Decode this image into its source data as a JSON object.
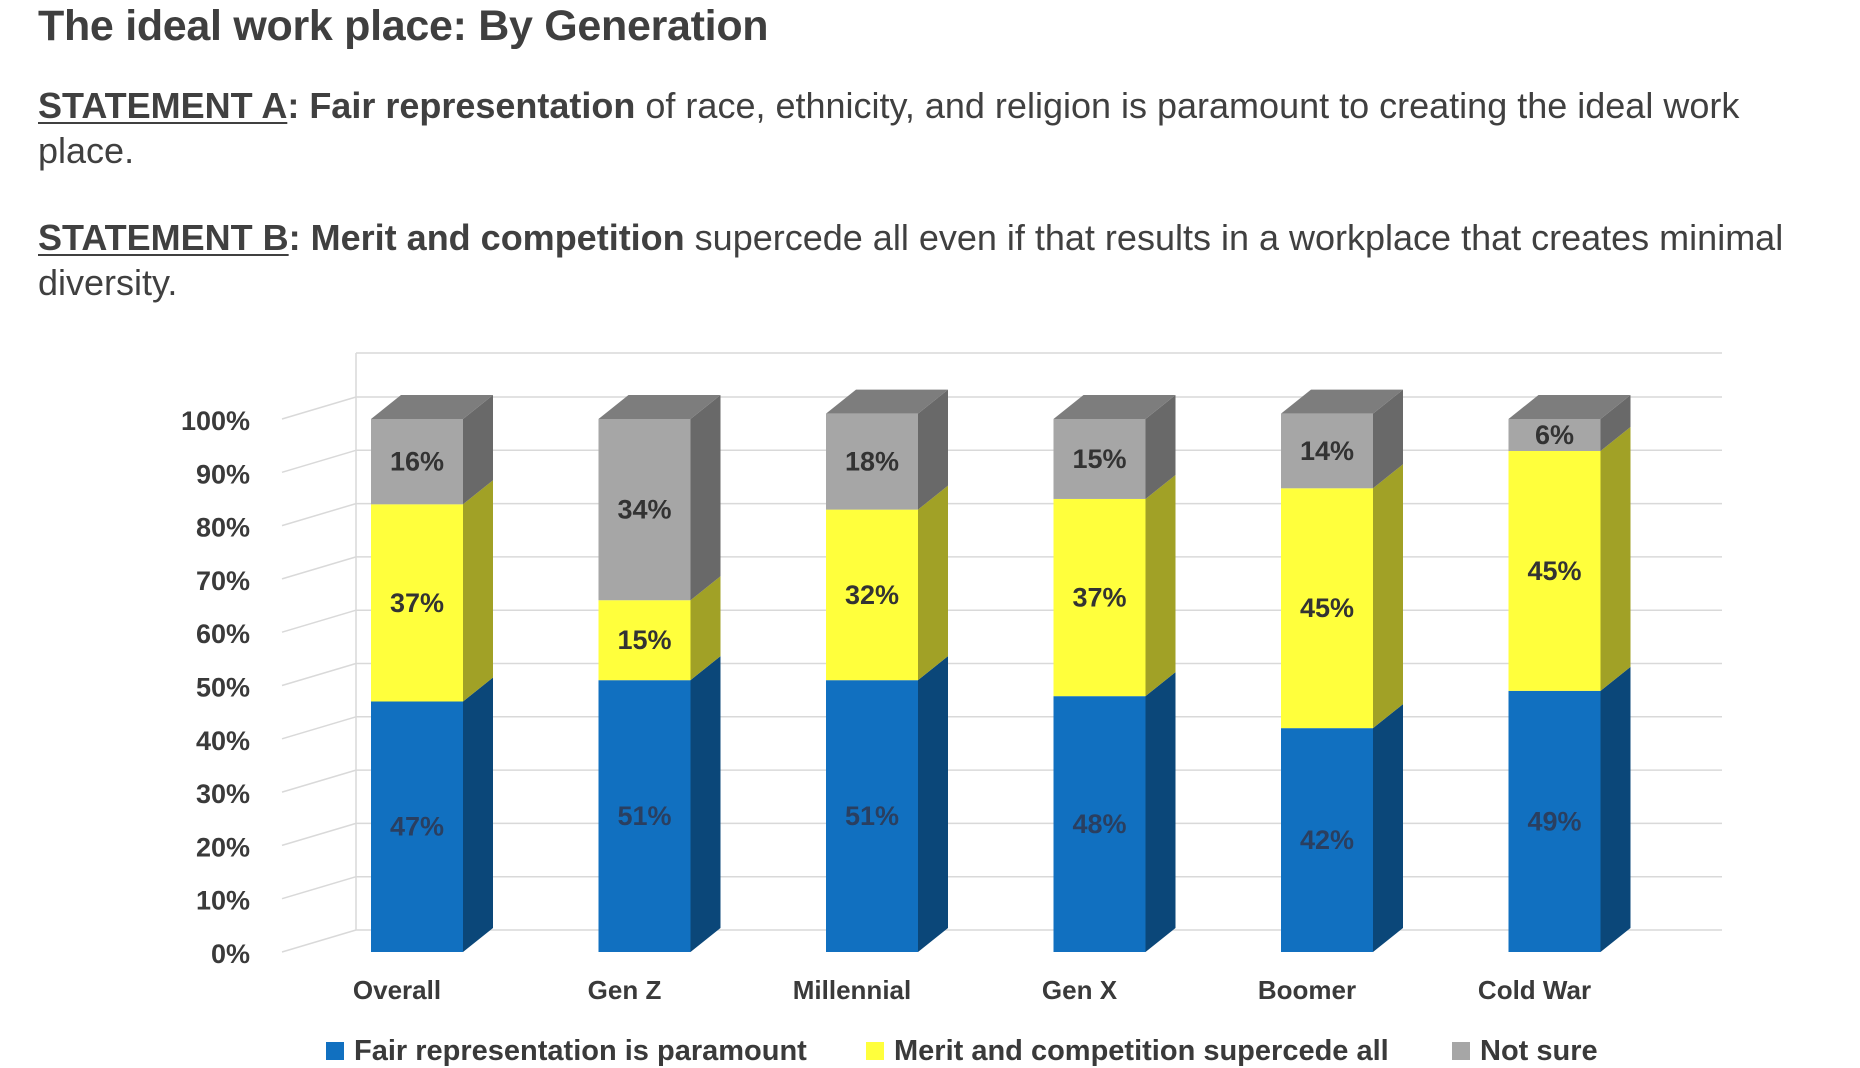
{
  "title": "The ideal work place: By Generation",
  "statement_a": {
    "label": "STATEMENT A",
    "sep": ": ",
    "emphasis": "Fair representation",
    "rest": " of race, ethnicity, and religion is paramount to creating the ideal work place."
  },
  "statement_b": {
    "label": "STATEMENT B",
    "sep": ": ",
    "emphasis": "Merit and competition",
    "rest": " supercede all even if that results in a workplace that creates minimal diversity."
  },
  "chart_data": {
    "type": "bar",
    "stacked": true,
    "style": "3d",
    "categories": [
      "Overall",
      "Gen Z",
      "Millennial",
      "Gen X",
      "Boomer",
      "Cold War"
    ],
    "series": [
      {
        "name": "Fair representation is paramount",
        "values": [
          47,
          51,
          51,
          48,
          42,
          49
        ],
        "color": "#1170C0",
        "label_color": "#2a3f60"
      },
      {
        "name": "Merit and competition supercede all",
        "values": [
          37,
          15,
          32,
          37,
          45,
          45
        ],
        "color": "#FFFF3C",
        "label_color": "#333333"
      },
      {
        "name": "Not sure",
        "values": [
          16,
          34,
          18,
          15,
          14,
          6
        ],
        "color": "#A6A6A6",
        "label_color": "#333333"
      }
    ],
    "data_labels": [
      [
        "47%",
        "51%",
        "51%",
        "48%",
        "42%",
        "49%"
      ],
      [
        "37%",
        "15%",
        "32%",
        "37%",
        "45%",
        "45%"
      ],
      [
        "16%",
        "34%",
        "18%",
        "15%",
        "14%",
        "6%"
      ]
    ],
    "yticks": [
      "0%",
      "10%",
      "20%",
      "30%",
      "40%",
      "50%",
      "60%",
      "70%",
      "80%",
      "90%",
      "100%"
    ],
    "ylim": [
      0,
      100
    ],
    "ylabel": "",
    "xlabel": "",
    "grid": true,
    "legend_position": "bottom"
  }
}
